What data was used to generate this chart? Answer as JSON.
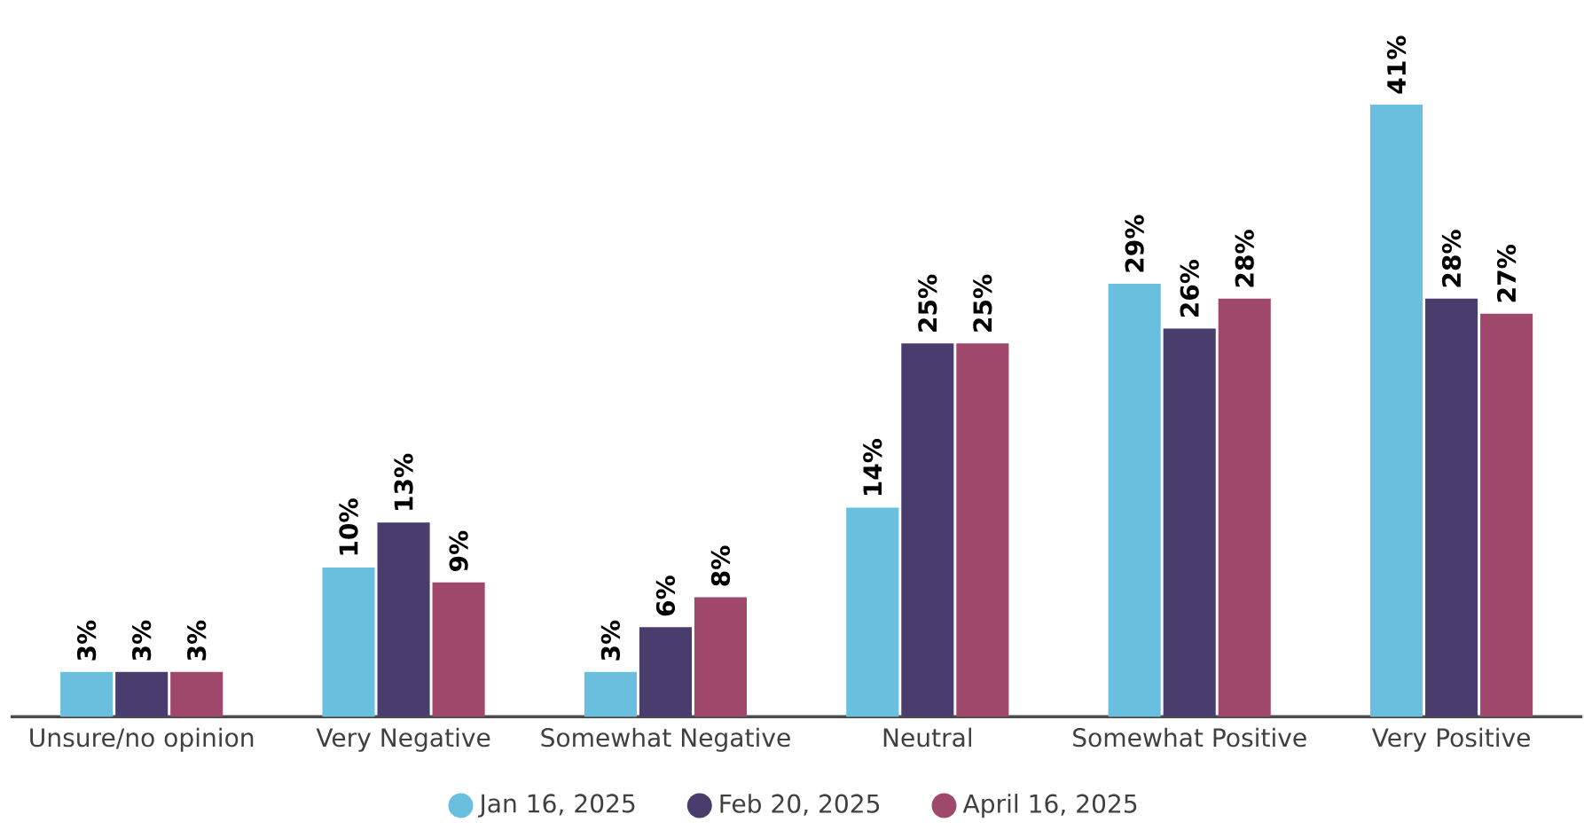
{
  "chart_data": {
    "type": "bar",
    "categories": [
      "Unsure/no opinion",
      "Very Negative",
      "Somewhat Negative",
      "Neutral",
      "Somewhat Positive",
      "Very Positive"
    ],
    "series": [
      {
        "name": "Jan 16, 2025",
        "color": "#6bbfde",
        "values": [
          3,
          10,
          3,
          14,
          29,
          41
        ],
        "value_labels": [
          "3%",
          "10%",
          "3%",
          "14%",
          "29%",
          "41%"
        ]
      },
      {
        "name": "Feb 20, 2025",
        "color": "#483d6d",
        "values": [
          3,
          13,
          6,
          25,
          26,
          28
        ],
        "value_labels": [
          "3%",
          "13%",
          "6%",
          "25%",
          "26%",
          "28%"
        ]
      },
      {
        "name": "April 16, 2025",
        "color": "#a0476c",
        "values": [
          3,
          9,
          8,
          25,
          28,
          27
        ],
        "value_labels": [
          "3%",
          "9%",
          "8%",
          "25%",
          "28%",
          "27%"
        ]
      }
    ],
    "legend": "bottom"
  }
}
